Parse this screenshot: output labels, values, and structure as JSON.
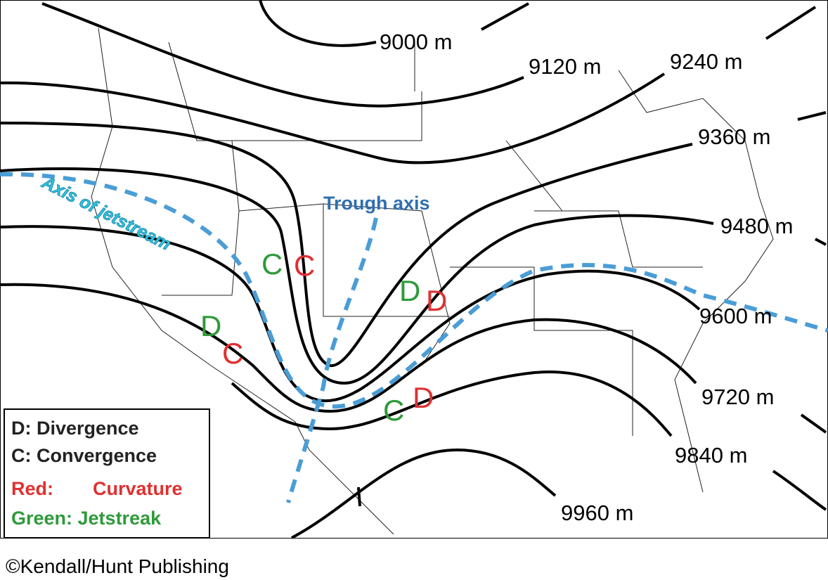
{
  "map": {
    "contours": [
      {
        "label": "9000 m"
      },
      {
        "label": "9120 m"
      },
      {
        "label": "9240 m"
      },
      {
        "label": "9360 m"
      },
      {
        "label": "9480 m"
      },
      {
        "label": "9600 m"
      },
      {
        "label": "9720 m"
      },
      {
        "label": "9840 m"
      },
      {
        "label": "9960 m"
      }
    ],
    "annotations": {
      "jetstream": "Axis of jetstream",
      "trough": "Trough axis"
    },
    "markers": [
      {
        "letter": "C",
        "color": "#2e9a3a"
      },
      {
        "letter": "C",
        "color": "#e03030"
      },
      {
        "letter": "D",
        "color": "#2e9a3a"
      },
      {
        "letter": "C",
        "color": "#e03030"
      },
      {
        "letter": "D",
        "color": "#2e9a3a"
      },
      {
        "letter": "D",
        "color": "#e03030"
      },
      {
        "letter": "C",
        "color": "#2e9a3a"
      },
      {
        "letter": "D",
        "color": "#e03030"
      }
    ],
    "legend": {
      "divergence": "D: Divergence",
      "convergence": "C: Convergence",
      "red_key": "Red:",
      "red_text": "Curvature",
      "green": "Green: Jetstreak"
    },
    "copyright": "©Kendall/Hunt Publishing"
  }
}
